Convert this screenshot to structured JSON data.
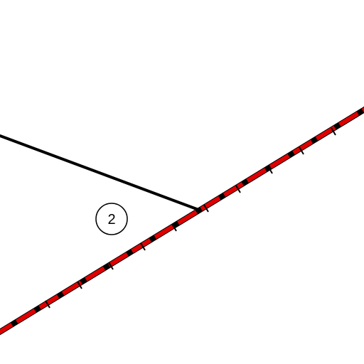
{
  "diagram": {
    "background_color": "#ffffff",
    "colors": {
      "main_line": "#000000",
      "highlight_dash": "#e00000"
    },
    "labels": {
      "marker": "2"
    }
  }
}
